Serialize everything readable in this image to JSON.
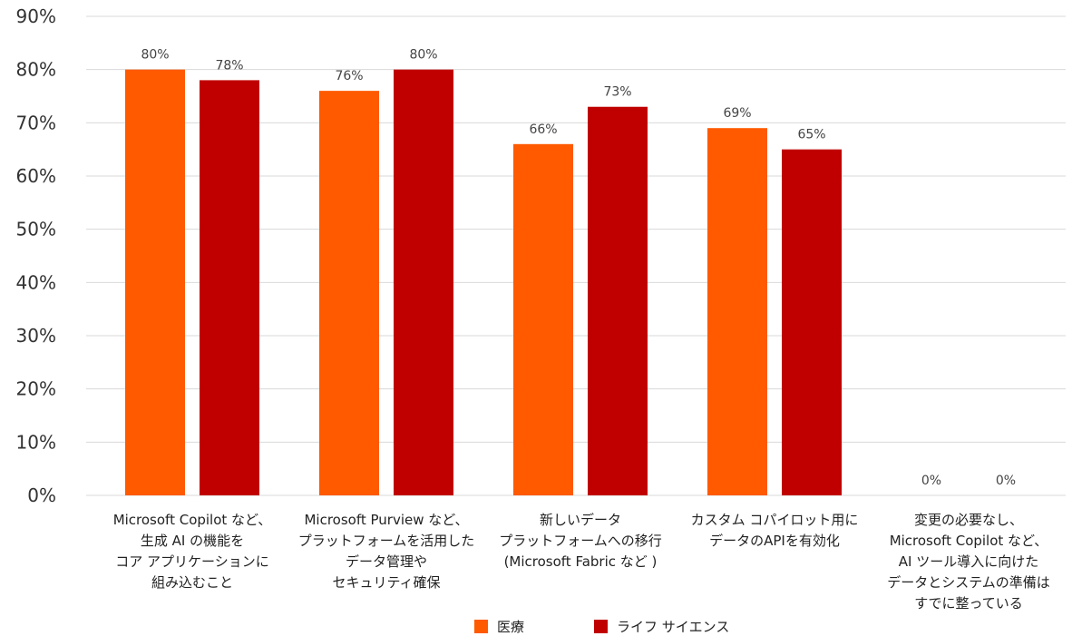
{
  "chart_data": {
    "type": "bar",
    "categories": [
      [
        "Microsoft Copilot など、",
        "生成 AI の機能を",
        "コア アプリケーションに",
        "組み込むこと"
      ],
      [
        "Microsoft Purview など、",
        "プラットフォームを活用した",
        "データ管理や",
        "セキュリティ確保"
      ],
      [
        "新しいデータ",
        "プラットフォームへの移行",
        "(Microsoft Fabric など )"
      ],
      [
        "カスタム コパイロット用に",
        "データのAPIを有効化"
      ],
      [
        "変更の必要なし、",
        "Microsoft Copilot など、",
        "AI ツール導入に向けた",
        "データとシステムの準備は",
        "すでに整っている"
      ]
    ],
    "series": [
      {
        "name": "医療",
        "color": "#FF5A00",
        "values": [
          80,
          76,
          66,
          69,
          0
        ]
      },
      {
        "name": "ライフ サイエンス",
        "color": "#C00000",
        "values": [
          78,
          80,
          73,
          65,
          0
        ]
      }
    ],
    "data_labels": [
      [
        "80%",
        "76%",
        "66%",
        "69%",
        "0%"
      ],
      [
        "78%",
        "80%",
        "73%",
        "65%",
        "0%"
      ]
    ],
    "y_ticks": [
      {
        "value": 0,
        "label": "0%"
      },
      {
        "value": 10,
        "label": "10%"
      },
      {
        "value": 20,
        "label": "20%"
      },
      {
        "value": 30,
        "label": "30%"
      },
      {
        "value": 40,
        "label": "40%"
      },
      {
        "value": 50,
        "label": "50%"
      },
      {
        "value": 60,
        "label": "60%"
      },
      {
        "value": 70,
        "label": "70%"
      },
      {
        "value": 80,
        "label": "80%"
      },
      {
        "value": 90,
        "label": "90%"
      }
    ],
    "ylim": [
      0,
      90
    ],
    "grid": true,
    "legend_position": "bottom",
    "title": "",
    "xlabel": "",
    "ylabel": ""
  }
}
